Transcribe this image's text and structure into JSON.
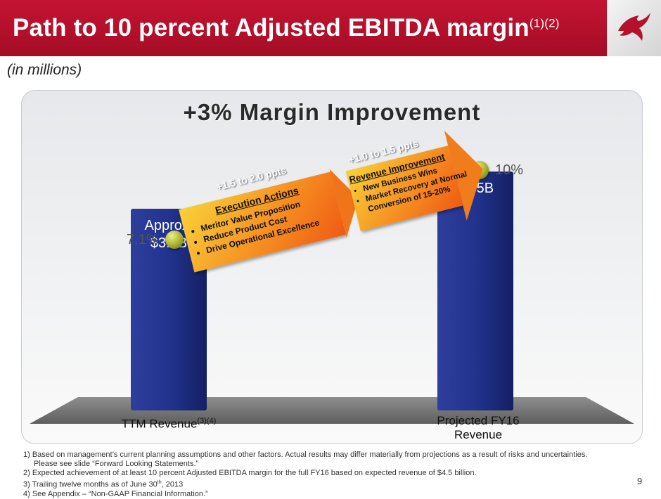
{
  "header": {
    "title": "Path to 10 percent Adjusted EBITDA margin",
    "title_sup": "(1)(2)",
    "brand_color": "#b5102c"
  },
  "subtitle": "(in millions)",
  "panel_title": "+3% Margin Improvement",
  "chart_data": {
    "type": "bar",
    "categories": [
      "TTM Revenue",
      "Projected FY16 Revenue"
    ],
    "category_sups": [
      "(3)(4)",
      ""
    ],
    "values": [
      3.8,
      4.5
    ],
    "value_labels": [
      [
        "Approx.",
        "$3.8B"
      ],
      [
        "$4.5B"
      ]
    ],
    "margins": [
      7.1,
      10
    ],
    "margin_labels": [
      "7.1%",
      "10%"
    ],
    "ylim": [
      0,
      5
    ],
    "bar_color": "#1f2f86",
    "grid": false
  },
  "arrows": [
    {
      "top_note": "+1.5 to 2.0 ppts",
      "title": "Execution Actions",
      "items": [
        "Meritor Value Proposition",
        "Reduce Product Cost",
        "Drive Operational Excellence"
      ]
    },
    {
      "top_note": "+1.0 to 1.5 ppts",
      "title": "Revenue Improvement",
      "items": [
        "New Business Wins",
        "Market Recovery at Normal Conversion of 15-20%"
      ]
    }
  ],
  "footnotes": {
    "n1a": "1) Based on management’s current planning assumptions and other factors. Actual results may differ materially from projections as a result of risks and uncertainties.",
    "n1b": "Please see slide “Forward Looking Statements.”",
    "n2": "2) Expected achievement of at least 10 percent Adjusted EBITDA margin for the full FY16 based on expected revenue of $4.5 billion.",
    "n3a": "3) Trailing twelve months as of June 30",
    "n3sup": "th",
    "n3b": ", 2013",
    "n4": "4) See Appendix – “Non-GAAP Financial Information.”"
  },
  "page_number": "9"
}
